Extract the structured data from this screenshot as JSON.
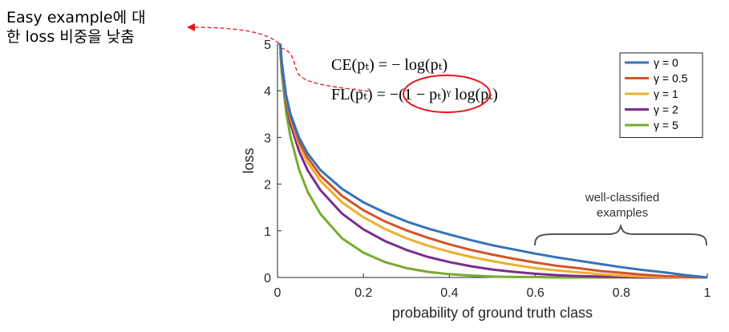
{
  "annotation": {
    "line1": "Easy example에 대",
    "line2": "한 loss 비중을 낮춤",
    "arrow_color": "#e8141b"
  },
  "formulas": {
    "ce": "CE(pₜ) = − log(pₜ)",
    "fl_left": "FL(pₜ) = ",
    "fl_highlight": "−(1 − pₜ)ᵞ",
    "fl_right": " log(pₜ)",
    "highlight_color": "#e8141b"
  },
  "bracket_label": {
    "line1": "well-classified",
    "line2": "examples"
  },
  "chart_data": {
    "type": "line",
    "title": "",
    "xlabel": "probability of ground truth class",
    "ylabel": "loss",
    "xlim": [
      0,
      1
    ],
    "ylim": [
      0,
      5
    ],
    "x_ticks": [
      0,
      0.2,
      0.4,
      0.6,
      0.8,
      1
    ],
    "x_tick_labels": [
      "0",
      "0.2",
      "0.4",
      "0.6",
      "0.8",
      "1"
    ],
    "y_ticks": [
      0,
      1,
      2,
      3,
      4,
      5
    ],
    "y_tick_labels": [
      "0",
      "1",
      "2",
      "3",
      "4",
      "5"
    ],
    "grid": false,
    "legend_position": "top-right",
    "function": "FL(p) = -(1-p)^gamma * log(p)",
    "x": [
      0.0067,
      0.01,
      0.02,
      0.03,
      0.05,
      0.07,
      0.1,
      0.15,
      0.2,
      0.25,
      0.3,
      0.35,
      0.4,
      0.45,
      0.5,
      0.55,
      0.6,
      0.65,
      0.7,
      0.75,
      0.8,
      0.85,
      0.9,
      0.95,
      1.0
    ],
    "series": [
      {
        "name": "γ = 0",
        "gamma": 0,
        "color": "#3573b9",
        "values": [
          5.0,
          4.61,
          3.91,
          3.51,
          3.0,
          2.66,
          2.3,
          1.9,
          1.61,
          1.39,
          1.2,
          1.05,
          0.92,
          0.8,
          0.69,
          0.6,
          0.51,
          0.43,
          0.36,
          0.29,
          0.22,
          0.16,
          0.11,
          0.05,
          0.0
        ]
      },
      {
        "name": "γ = 0.5",
        "gamma": 0.5,
        "color": "#d45426",
        "values": [
          4.98,
          4.58,
          3.87,
          3.45,
          2.92,
          2.57,
          2.18,
          1.75,
          1.44,
          1.2,
          1.01,
          0.85,
          0.71,
          0.59,
          0.49,
          0.4,
          0.32,
          0.25,
          0.2,
          0.14,
          0.1,
          0.06,
          0.03,
          0.01,
          0.0
        ]
      },
      {
        "name": "γ = 1",
        "gamma": 1,
        "color": "#ecb030",
        "values": [
          4.97,
          4.56,
          3.83,
          3.4,
          2.85,
          2.47,
          2.07,
          1.61,
          1.29,
          1.04,
          0.84,
          0.68,
          0.55,
          0.44,
          0.35,
          0.27,
          0.2,
          0.15,
          0.11,
          0.07,
          0.04,
          0.02,
          0.01,
          0.0,
          0.0
        ]
      },
      {
        "name": "γ = 2",
        "gamma": 2,
        "color": "#7b2d8e",
        "values": [
          4.93,
          4.51,
          3.76,
          3.3,
          2.71,
          2.3,
          1.87,
          1.37,
          1.03,
          0.78,
          0.59,
          0.44,
          0.33,
          0.24,
          0.17,
          0.12,
          0.08,
          0.05,
          0.03,
          0.02,
          0.01,
          0.0,
          0.0,
          0.0,
          0.0
        ]
      },
      {
        "name": "γ = 5",
        "gamma": 5,
        "color": "#77ac30",
        "values": [
          4.83,
          4.38,
          3.54,
          3.02,
          2.32,
          1.84,
          1.36,
          0.84,
          0.53,
          0.33,
          0.2,
          0.12,
          0.07,
          0.04,
          0.02,
          0.01,
          0.01,
          0.0,
          0.0,
          0.0,
          0.0,
          0.0,
          0.0,
          0.0,
          0.0
        ]
      }
    ]
  }
}
